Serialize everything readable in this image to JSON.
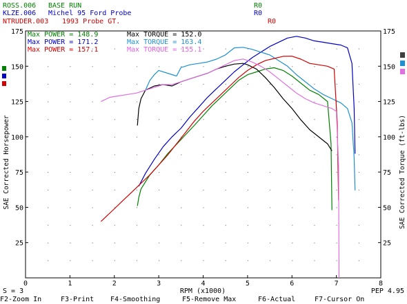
{
  "run_list": [
    {
      "file": "ROSS.006",
      "description": "BASE RUN",
      "flag": "R0",
      "color": "#008000"
    },
    {
      "file": "KLZE.006",
      "description": "Michel 95 Ford Probe",
      "flag": "R0",
      "color": "#0000c0"
    },
    {
      "file": "NTRUDER.003",
      "description": "1993 Probe GT.",
      "flag": "R0",
      "color": "#d00000"
    }
  ],
  "max_power": [
    {
      "label": "Max POWER = 148.9",
      "color": "#008000"
    },
    {
      "label": "Max POWER = 171.2",
      "color": "#0000c0"
    },
    {
      "label": "Max POWER = 157.1",
      "color": "#d00000"
    }
  ],
  "max_torque": [
    {
      "label": "Max TORQUE = 152.0",
      "color": "#000000"
    },
    {
      "label": "Max TORQUE = 163.4",
      "color": "#1e90d0"
    },
    {
      "label": "Max TORQUE = 155.1",
      "color": "#e060e0"
    }
  ],
  "legend_squares_left": [
    "#008000",
    "#0000c0",
    "#d00000"
  ],
  "legend_squares_right": [
    "#404040",
    "#1e90d0",
    "#e070e0"
  ],
  "status": {
    "smoothing": "S = 3",
    "pep": "PEP 4.95"
  },
  "function_keys": [
    "F2-Zoom In",
    "F3-Print",
    "F4-Smoothing",
    "F5-Remove Max",
    "F6-Actual",
    "F7-Cursor On"
  ],
  "chart_data": {
    "type": "line",
    "xlabel": "RPM (x1000)",
    "ylabel_left": "SAE Corrected Horsepower",
    "ylabel_right": "SAE Corrected Torque (ft-lbs)",
    "xlim": [
      0,
      8
    ],
    "ylim": [
      0,
      175
    ],
    "x_ticks": [
      0,
      1,
      2,
      3,
      4,
      5,
      6,
      7,
      8
    ],
    "y_ticks": [
      25,
      50,
      75,
      100,
      125,
      150,
      175
    ],
    "grid": "dotted",
    "series": [
      {
        "name": "ROSS.006",
        "kind": "power",
        "color": "#008000",
        "x": [
          2.52,
          2.55,
          2.6,
          2.7,
          2.8,
          3.0,
          3.2,
          3.5,
          3.8,
          4.0,
          4.2,
          4.4,
          4.6,
          4.8,
          5.0,
          5.2,
          5.4,
          5.6,
          5.8,
          6.0,
          6.2,
          6.4,
          6.6,
          6.8,
          6.88,
          6.9
        ],
        "y": [
          51,
          57,
          63,
          68,
          73,
          80,
          88,
          98,
          108,
          115,
          122,
          128,
          134,
          140,
          144,
          146,
          148,
          148.9,
          147,
          143,
          138,
          133,
          130,
          125,
          95,
          48
        ]
      },
      {
        "name": "ROSS.006",
        "kind": "torque",
        "color": "#000000",
        "x": [
          2.52,
          2.55,
          2.6,
          2.7,
          2.9,
          3.1,
          3.3,
          3.5,
          3.7,
          3.9,
          4.1,
          4.3,
          4.5,
          4.7,
          4.9,
          5.0,
          5.2,
          5.4,
          5.6,
          5.8,
          6.0,
          6.2,
          6.4,
          6.6,
          6.8,
          6.9
        ],
        "y": [
          108,
          120,
          127,
          133,
          136,
          137,
          136,
          139,
          141,
          143,
          145,
          148,
          150,
          151.5,
          152,
          151,
          148,
          142,
          135,
          127,
          120,
          112,
          105,
          100,
          95,
          90
        ]
      },
      {
        "name": "KLZE.006",
        "kind": "power",
        "color": "#0000c0",
        "x": [
          2.55,
          2.7,
          2.9,
          3.1,
          3.3,
          3.5,
          3.7,
          3.9,
          4.1,
          4.3,
          4.5,
          4.7,
          4.9,
          5.1,
          5.3,
          5.5,
          5.7,
          5.9,
          6.1,
          6.3,
          6.5,
          6.7,
          6.9,
          7.1,
          7.25,
          7.35,
          7.4,
          7.42
        ],
        "y": [
          65,
          74,
          84,
          93,
          100,
          106,
          114,
          121,
          128,
          134,
          140,
          146,
          151,
          156,
          160,
          164,
          167,
          170,
          171.2,
          170,
          168,
          167,
          166,
          165,
          163,
          152,
          120,
          88
        ]
      },
      {
        "name": "KLZE.006",
        "kind": "torque",
        "color": "#1e90d0",
        "x": [
          2.7,
          2.8,
          2.9,
          3.0,
          3.2,
          3.4,
          3.5,
          3.7,
          3.9,
          4.1,
          4.3,
          4.5,
          4.7,
          4.9,
          5.1,
          5.3,
          5.5,
          5.7,
          5.9,
          6.1,
          6.3,
          6.5,
          6.7,
          6.9,
          7.1,
          7.25,
          7.35,
          7.4,
          7.42
        ],
        "y": [
          133,
          140,
          144,
          147,
          145,
          143,
          149,
          151,
          152,
          153,
          155,
          158,
          163,
          163.4,
          162,
          160,
          158,
          154,
          150,
          144,
          139,
          134,
          130,
          127,
          124,
          120,
          110,
          85,
          62
        ]
      },
      {
        "name": "NTRUDER.003",
        "kind": "power",
        "color": "#d00000",
        "x": [
          1.7,
          1.8,
          2.0,
          2.2,
          2.4,
          2.6,
          2.8,
          3.0,
          3.2,
          3.4,
          3.6,
          3.8,
          4.0,
          4.2,
          4.4,
          4.6,
          4.8,
          5.0,
          5.2,
          5.4,
          5.6,
          5.8,
          6.0,
          6.2,
          6.4,
          6.6,
          6.8,
          6.95,
          7.02,
          7.05
        ],
        "y": [
          40,
          43,
          49,
          55,
          61,
          67,
          73,
          80,
          87,
          95,
          103,
          111,
          118,
          124,
          130,
          136,
          142,
          147,
          151,
          154,
          155.5,
          157,
          157.1,
          155,
          152,
          151,
          150,
          148,
          110,
          55
        ]
      },
      {
        "name": "NTRUDER.003",
        "kind": "torque",
        "color": "#e070e0",
        "x": [
          1.7,
          1.9,
          2.1,
          2.3,
          2.5,
          2.7,
          2.9,
          3.1,
          3.3,
          3.5,
          3.7,
          3.9,
          4.1,
          4.3,
          4.5,
          4.7,
          4.9,
          5.1,
          5.3,
          5.5,
          5.7,
          5.9,
          6.1,
          6.3,
          6.5,
          6.7,
          6.9,
          7.0,
          7.05,
          7.06
        ],
        "y": [
          125,
          128,
          129,
          130,
          131,
          133,
          135,
          137,
          137,
          139,
          141,
          143,
          145,
          148,
          151,
          154,
          155.1,
          153,
          150,
          146,
          141,
          136,
          131,
          127,
          124,
          122,
          120,
          118,
          80,
          0
        ]
      }
    ]
  }
}
